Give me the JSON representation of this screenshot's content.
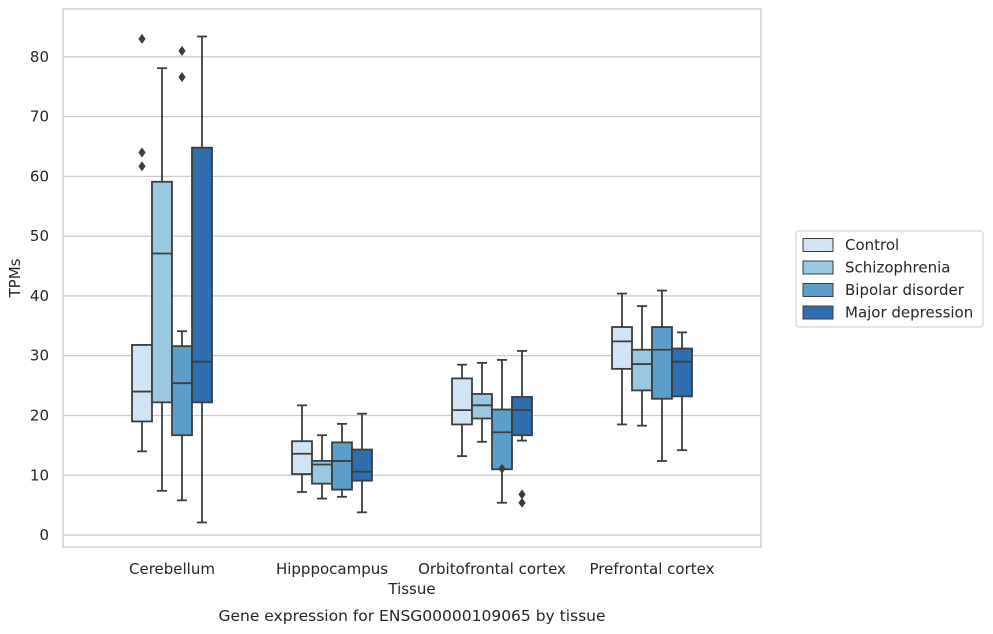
{
  "chart_data": {
    "type": "box",
    "caption": "Gene expression for ENSG00000109065 by tissue",
    "xlabel": "Tissue",
    "ylabel": "TPMs",
    "ylim": [
      -2,
      88
    ],
    "yticks": [
      0,
      10,
      20,
      30,
      40,
      50,
      60,
      70,
      80
    ],
    "grid": "horizontal",
    "legend_position": "right, outside",
    "categories": [
      "Cerebellum",
      "Hipppocampus",
      "Orbitofrontal cortex",
      "Prefrontal cortex"
    ],
    "series": [
      {
        "name": "Control",
        "color": "#d2e3f3",
        "boxes": [
          {
            "whislo": 14.0,
            "q1": 19.0,
            "med": 24.0,
            "q3": 31.8,
            "whishi": 31.8,
            "fliers": []
          },
          {
            "whislo": 7.2,
            "q1": 10.2,
            "med": 13.6,
            "q3": 15.7,
            "whishi": 21.7,
            "fliers": []
          },
          {
            "whislo": 13.2,
            "q1": 18.5,
            "med": 20.9,
            "q3": 26.2,
            "whishi": 28.5,
            "fliers": []
          },
          {
            "whislo": 18.5,
            "q1": 27.8,
            "med": 32.4,
            "q3": 34.8,
            "whishi": 40.4,
            "fliers": []
          }
        ]
      },
      {
        "name": "Schizophrenia",
        "color": "#9ac8e0",
        "boxes": [
          {
            "whislo": 7.4,
            "q1": 22.2,
            "med": 47.1,
            "q3": 59.1,
            "whishi": 78.1,
            "fliers": []
          },
          {
            "whislo": 6.1,
            "q1": 8.6,
            "med": 11.8,
            "q3": 12.4,
            "whishi": 16.7,
            "fliers": []
          },
          {
            "whislo": 15.6,
            "q1": 19.5,
            "med": 21.7,
            "q3": 23.6,
            "whishi": 28.8,
            "fliers": []
          },
          {
            "whislo": 18.3,
            "q1": 24.2,
            "med": 28.6,
            "q3": 31.0,
            "whishi": 38.3,
            "fliers": []
          }
        ]
      },
      {
        "name": "Bipolar disorder",
        "color": "#5a9ec9",
        "boxes": [
          {
            "whislo": 5.8,
            "q1": 16.7,
            "med": 25.4,
            "q3": 31.6,
            "whishi": 34.1,
            "fliers": [
              81.0,
              76.6
            ]
          },
          {
            "whislo": 6.4,
            "q1": 7.6,
            "med": 12.4,
            "q3": 15.5,
            "whishi": 18.6,
            "fliers": []
          },
          {
            "whislo": 5.4,
            "q1": 11.0,
            "med": 17.2,
            "q3": 21.0,
            "whishi": 29.3,
            "fliers": [
              11.1
            ]
          },
          {
            "whislo": 12.4,
            "q1": 22.8,
            "med": 31.0,
            "q3": 34.8,
            "whishi": 40.9,
            "fliers": []
          }
        ]
      },
      {
        "name": "Major depression",
        "color": "#2e6eae",
        "boxes": [
          {
            "whislo": 2.1,
            "q1": 22.2,
            "med": 29.0,
            "q3": 64.8,
            "whishi": 83.4,
            "fliers": []
          },
          {
            "whislo": 3.8,
            "q1": 9.1,
            "med": 10.6,
            "q3": 14.3,
            "whishi": 20.3,
            "fliers": []
          },
          {
            "whislo": 15.8,
            "q1": 16.7,
            "med": 20.9,
            "q3": 23.1,
            "whishi": 30.8,
            "fliers": [
              6.8,
              5.4
            ]
          },
          {
            "whislo": 14.2,
            "q1": 23.2,
            "med": 29.0,
            "q3": 31.2,
            "whishi": 33.9,
            "fliers": []
          }
        ]
      }
    ],
    "extra_fliers": [
      {
        "category": "Cerebellum",
        "series": "Control",
        "values": [
          83.0,
          64.0,
          61.7
        ]
      }
    ]
  }
}
